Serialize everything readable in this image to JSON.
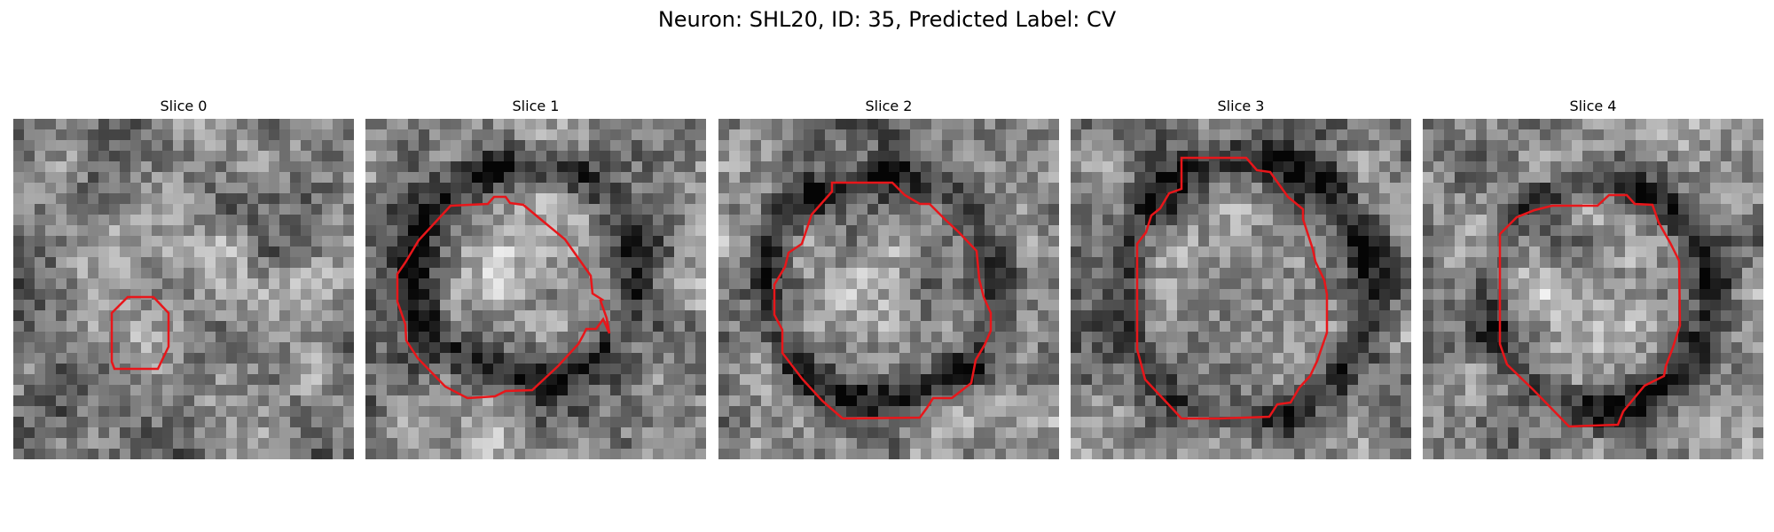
{
  "figure": {
    "title": "Neuron: SHL20, ID: 35, Predicted Label: CV"
  },
  "panels": [
    {
      "title": "Slice 0",
      "seed": 11,
      "ring_rx": 0.0,
      "ring_ry": 0.0,
      "blob_cx": 0.4,
      "blob_cy": 0.6,
      "blob_r": 0.1
    },
    {
      "title": "Slice 1",
      "seed": 23,
      "ring_rx": 0.33,
      "ring_ry": 0.31,
      "blob_cx": 0.47,
      "blob_cy": 0.45,
      "blob_r": 0.16
    },
    {
      "title": "Slice 2",
      "seed": 37,
      "ring_rx": 0.34,
      "ring_ry": 0.33,
      "blob_cx": 0.48,
      "blob_cy": 0.5,
      "blob_r": 0.18
    },
    {
      "title": "Slice 3",
      "seed": 53,
      "ring_rx": 0.36,
      "ring_ry": 0.38,
      "blob_cx": 0.52,
      "blob_cy": 0.5,
      "blob_r": 0.25
    },
    {
      "title": "Slice 4",
      "seed": 71,
      "ring_rx": 0.33,
      "ring_ry": 0.33,
      "blob_cx": 0.52,
      "blob_cy": 0.52,
      "blob_r": 0.22
    }
  ],
  "contour_color": "#e8161a",
  "colormap": "gray"
}
